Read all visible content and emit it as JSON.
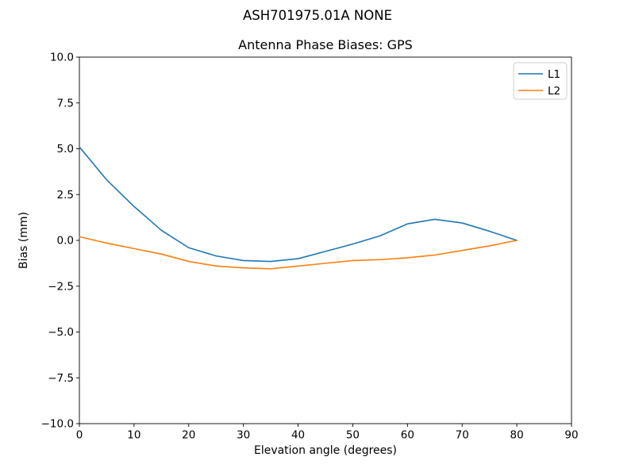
{
  "figure": {
    "suptitle": "ASH701975.01A   NONE"
  },
  "chart_data": {
    "type": "line",
    "title": "Antenna Phase Biases: GPS",
    "xlabel": "Elevation angle (degrees)",
    "ylabel": "Bias (mm)",
    "xlim": [
      0,
      90
    ],
    "ylim": [
      -10,
      10
    ],
    "grid": false,
    "legend_position": "upper right",
    "xtick_values": [
      0,
      10,
      20,
      30,
      40,
      50,
      60,
      70,
      80,
      90
    ],
    "xtick_labels": [
      "0",
      "10",
      "20",
      "30",
      "40",
      "50",
      "60",
      "70",
      "80",
      "90"
    ],
    "ytick_values": [
      10,
      7.5,
      5,
      2.5,
      0,
      -2.5,
      -5,
      -7.5,
      -10
    ],
    "ytick_labels": [
      "10.0",
      "7.5",
      "5.0",
      "2.5",
      "0.0",
      "−2.5",
      "−5.0",
      "−7.5",
      "−10.0"
    ],
    "x": [
      0,
      5,
      10,
      15,
      20,
      25,
      30,
      35,
      40,
      45,
      50,
      55,
      60,
      65,
      70,
      75,
      80
    ],
    "series": [
      {
        "name": "L1",
        "color": "#1f77b4",
        "values": [
          5.1,
          3.3,
          1.85,
          0.55,
          -0.4,
          -0.85,
          -1.1,
          -1.15,
          -1.0,
          -0.6,
          -0.2,
          0.25,
          0.9,
          1.15,
          0.95,
          0.5,
          0.0
        ]
      },
      {
        "name": "L2",
        "color": "#ff7f0e",
        "values": [
          0.2,
          -0.15,
          -0.45,
          -0.75,
          -1.15,
          -1.4,
          -1.5,
          -1.55,
          -1.4,
          -1.25,
          -1.1,
          -1.05,
          -0.95,
          -0.8,
          -0.55,
          -0.3,
          0.0
        ]
      }
    ]
  }
}
